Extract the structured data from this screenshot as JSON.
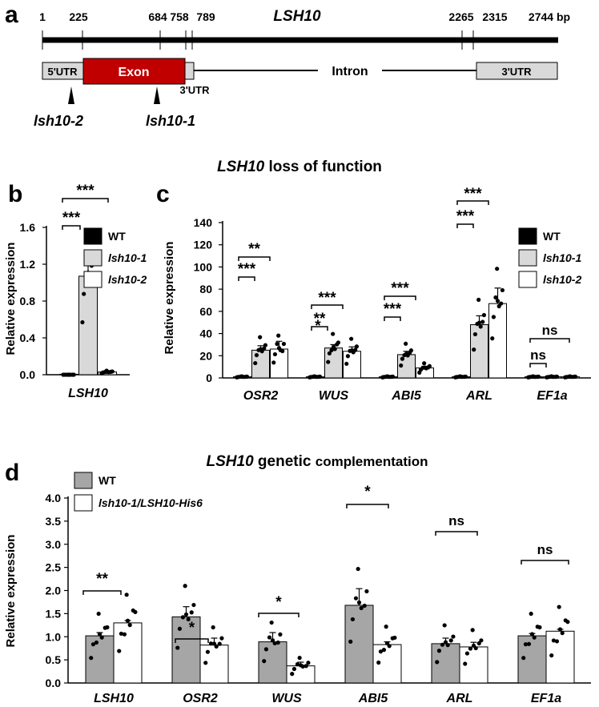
{
  "colors": {
    "black": "#000000",
    "dark_gray": "#a6a6a6",
    "light_gray": "#d9d9d9",
    "white": "#ffffff",
    "exon_red": "#c00000",
    "utr_gray": "#d9d9d9"
  },
  "panel_a": {
    "letter": "a",
    "gene_name": "LSH10",
    "positions": [
      "1",
      "225",
      "684",
      "758",
      "789",
      "2265",
      "2315",
      "2744 bp"
    ],
    "labels": {
      "utr5": "5'UTR",
      "exon": "Exon",
      "utr3_short": "3'UTR",
      "intron": "Intron",
      "utr3": "3'UTR"
    },
    "mutants": [
      "lsh10-2",
      "lsh10-1"
    ]
  },
  "title_loss": {
    "gene": "LSH10",
    "rest": " loss of function"
  },
  "title_comp": {
    "gene": "LSH10",
    "rest": " genetic ",
    "tail": "complementation"
  },
  "chart_data": [
    {
      "id": "b",
      "panel_letter": "b",
      "type": "bar",
      "categories": [
        "LSH10"
      ],
      "ylabel": "Relative expression",
      "ylim": [
        0,
        1.6
      ],
      "yticks": [
        "0.0",
        "0.4",
        "0.8",
        "1.2",
        "1.6"
      ],
      "series": [
        {
          "name": "WT",
          "color": "#000000",
          "values": [
            0.0
          ],
          "errors": [
            0.0
          ]
        },
        {
          "name": "lsh10-1",
          "color": "#d9d9d9",
          "values": [
            1.07
          ],
          "errors": [
            0.13
          ]
        },
        {
          "name": "lsh10-2",
          "color": "#ffffff",
          "values": [
            0.03
          ],
          "errors": [
            0.005
          ]
        }
      ],
      "significance": [
        {
          "pair": [
            0,
            1
          ],
          "label": "***"
        },
        {
          "pair": [
            0,
            2
          ],
          "label": "***"
        }
      ],
      "legend": "right"
    },
    {
      "id": "c",
      "panel_letter": "c",
      "type": "bar",
      "categories": [
        "OSR2",
        "WUS",
        "ABI5",
        "ARL",
        "EF1a"
      ],
      "ylabel": "Relative expression",
      "ylim": [
        0,
        140
      ],
      "yticks": [
        "0",
        "20",
        "40",
        "60",
        "80",
        "100",
        "120",
        "140"
      ],
      "series": [
        {
          "name": "WT",
          "color": "#000000",
          "values": [
            1,
            1,
            1,
            1,
            1
          ],
          "errors": [
            0.2,
            0.2,
            0.2,
            0.2,
            0.2
          ]
        },
        {
          "name": "lsh10-1",
          "color": "#d9d9d9",
          "values": [
            25,
            27,
            21,
            48,
            1
          ],
          "errors": [
            4,
            3,
            3,
            8,
            0.2
          ]
        },
        {
          "name": "lsh10-2",
          "color": "#ffffff",
          "values": [
            26,
            24,
            9,
            67,
            1
          ],
          "errors": [
            7,
            4,
            1.5,
            14,
            0.2
          ]
        }
      ],
      "significance": [
        {
          "category": 0,
          "pair": [
            0,
            1
          ],
          "label": "***"
        },
        {
          "category": 0,
          "pair": [
            0,
            2
          ],
          "label": "**"
        },
        {
          "category": 1,
          "pair": [
            0,
            1
          ],
          "label": "**"
        },
        {
          "category": 1,
          "pair": [
            0,
            2
          ],
          "label": "***"
        },
        {
          "category": 1,
          "above": 1,
          "label": "*"
        },
        {
          "category": 2,
          "pair": [
            0,
            1
          ],
          "label": "***"
        },
        {
          "category": 2,
          "pair": [
            0,
            2
          ],
          "label": "***"
        },
        {
          "category": 3,
          "pair": [
            0,
            1
          ],
          "label": "***"
        },
        {
          "category": 3,
          "pair": [
            0,
            2
          ],
          "label": "***"
        },
        {
          "category": 4,
          "pair": [
            0,
            1
          ],
          "label": "ns"
        },
        {
          "category": 4,
          "pair": [
            0,
            2
          ],
          "label": "ns"
        }
      ],
      "legend": "top-right"
    },
    {
      "id": "d",
      "panel_letter": "d",
      "type": "bar",
      "categories": [
        "LSH10",
        "OSR2",
        "WUS",
        "ABI5",
        "ARL",
        "EF1a"
      ],
      "ylabel": "Relative expression",
      "ylim": [
        0,
        4.0
      ],
      "yticks": [
        "0.0",
        "0.5",
        "1.0",
        "1.5",
        "2.0",
        "2.5",
        "3.0",
        "3.5",
        "4.0"
      ],
      "series": [
        {
          "name": "WT",
          "color": "#a6a6a6",
          "values": [
            1.02,
            1.43,
            0.89,
            1.68,
            0.85,
            1.02
          ],
          "errors": [
            0.07,
            0.22,
            0.2,
            0.36,
            0.12,
            0.05
          ]
        },
        {
          "name": "lsh10-1/LSH10-His6",
          "color": "#ffffff",
          "values": [
            1.3,
            0.82,
            0.37,
            0.83,
            0.78,
            1.12
          ],
          "errors": [
            0.05,
            0.15,
            0.08,
            0.06,
            0.1,
            0.04
          ]
        }
      ],
      "significance": [
        {
          "category": 0,
          "label": "**"
        },
        {
          "category": 1,
          "label": "*"
        },
        {
          "category": 2,
          "label": "*"
        },
        {
          "category": 3,
          "label": "*"
        },
        {
          "category": 4,
          "label": "ns"
        },
        {
          "category": 5,
          "label": "ns"
        }
      ],
      "legend": "top-left"
    }
  ]
}
